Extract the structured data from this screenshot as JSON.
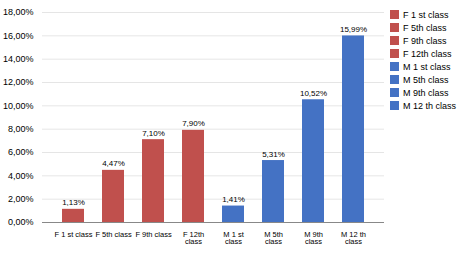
{
  "chart_data": {
    "type": "bar",
    "categories": [
      "F 1 st class",
      "F 5th class",
      "F 9th class",
      "F 12th\nclass",
      "M 1 st\nclass",
      "M 5th\nclass",
      "M 9th\nclass",
      "M 12 th\nclass"
    ],
    "values": [
      1.13,
      4.47,
      7.1,
      7.9,
      1.41,
      5.31,
      10.52,
      15.99
    ],
    "value_labels": [
      "1,13%",
      "4,47%",
      "7,10%",
      "7,90%",
      "1,41%",
      "5,31%",
      "10,52%",
      "15,99%"
    ],
    "colors": [
      "#c0504d",
      "#c0504d",
      "#c0504d",
      "#c0504d",
      "#4472c4",
      "#4472c4",
      "#4472c4",
      "#4472c4"
    ],
    "ylim": [
      0,
      18
    ],
    "yticks": [
      {
        "value": 0,
        "label": "0,00%"
      },
      {
        "value": 2,
        "label": "2,00%"
      },
      {
        "value": 4,
        "label": "4,00%"
      },
      {
        "value": 6,
        "label": "6,00%"
      },
      {
        "value": 8,
        "label": "8,00%"
      },
      {
        "value": 10,
        "label": "10,00%"
      },
      {
        "value": 12,
        "label": "12,00%"
      },
      {
        "value": 14,
        "label": "14,00%"
      },
      {
        "value": 16,
        "label": "16,00%"
      },
      {
        "value": 18,
        "label": "18,00%"
      }
    ],
    "grid": true,
    "data_labels": true,
    "legend": "right",
    "legend_labels": [
      "F 1 st class",
      "F 5th class",
      "F 9th class",
      "F 12th class",
      "M 1 st class",
      "M 5th class",
      "M 9th class",
      "M 12 th class"
    ]
  }
}
